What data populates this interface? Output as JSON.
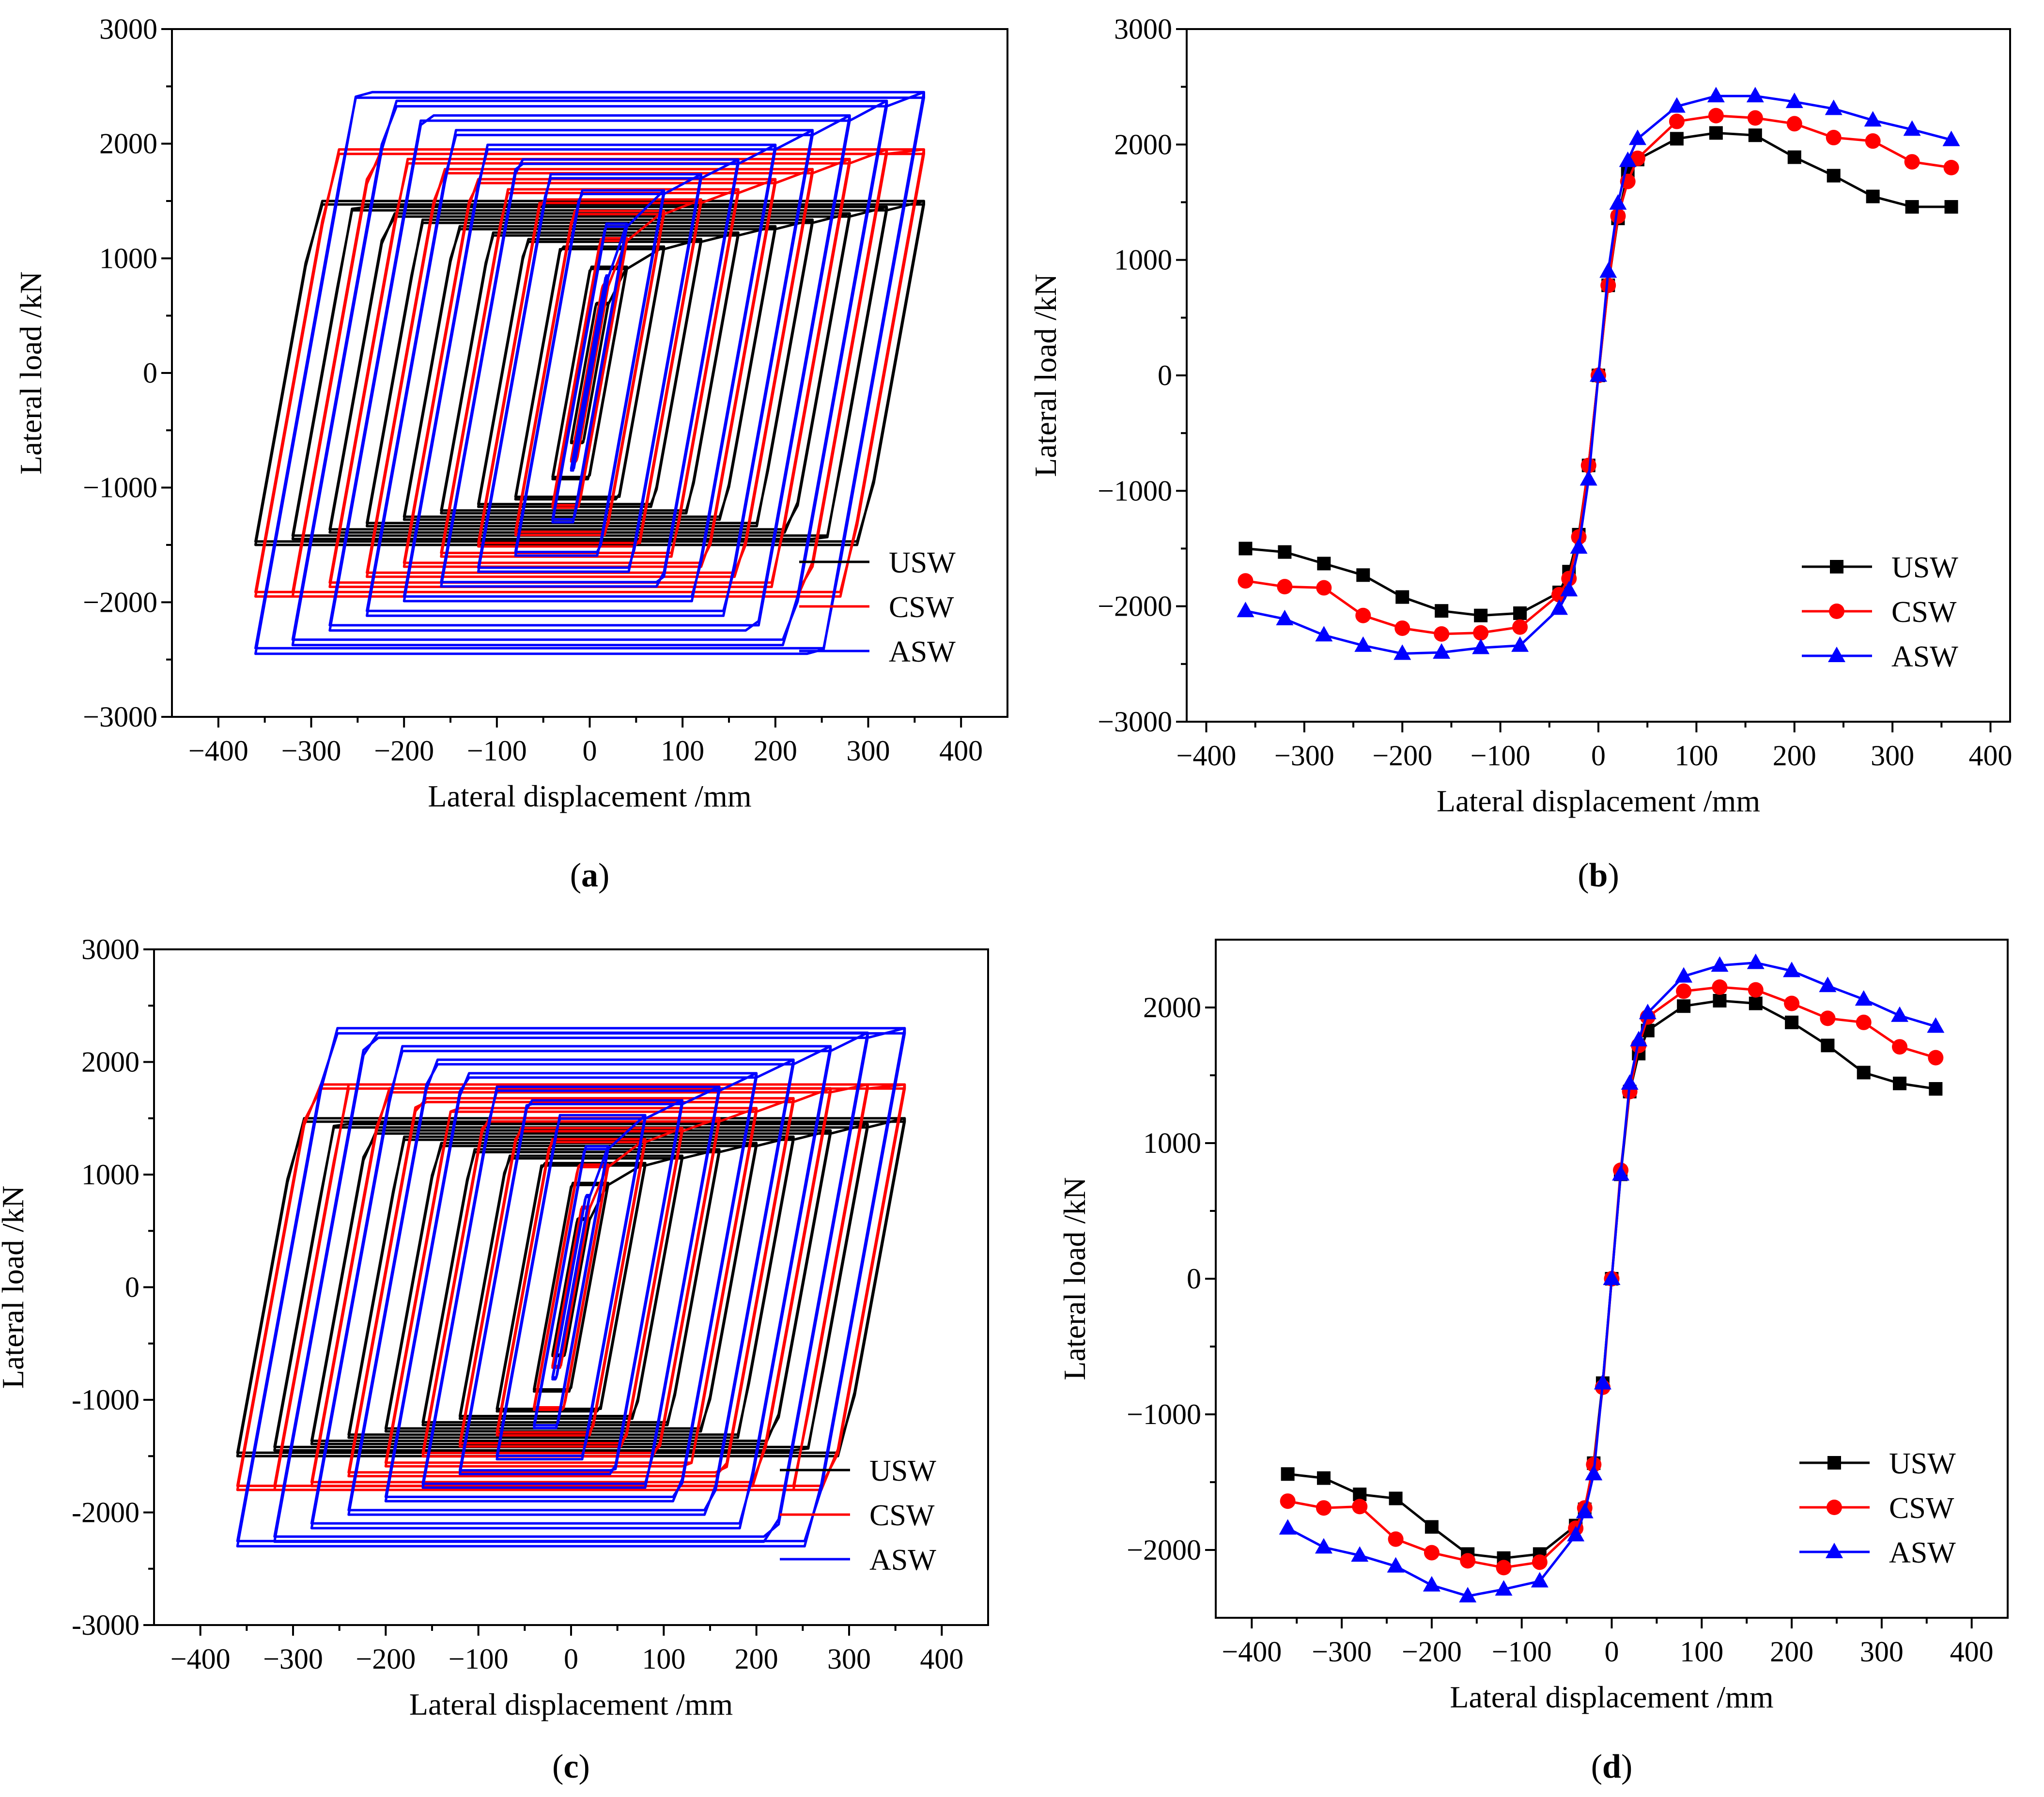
{
  "figure": {
    "colors": {
      "USW": "#000000",
      "CSW": "#ff0000",
      "ASW": "#0000ff"
    }
  },
  "chart_data": [
    {
      "id": "a",
      "type": "line",
      "subtype": "hysteresis",
      "caption": {
        "open": "(",
        "letter": "a",
        "close": ")"
      },
      "xlabel": "Lateral displacement /mm",
      "ylabel": "Lateral load /kN",
      "xlim": [
        -450,
        450
      ],
      "ylim": [
        -3000,
        3000
      ],
      "xticks": [
        -400,
        -300,
        -200,
        -100,
        0,
        100,
        200,
        300,
        400
      ],
      "yticks": [
        -3000,
        -2000,
        -1000,
        0,
        1000,
        2000,
        3000
      ],
      "xtick_labels": [
        "−400",
        "−300",
        "−200",
        "−100",
        "0",
        "100",
        "200",
        "300",
        "400"
      ],
      "ytick_labels": [
        "−3000",
        "−2000",
        "−1000",
        "0",
        "1000",
        "2000",
        "3000"
      ],
      "legend_position": "bottom-right",
      "legend": [
        "USW",
        "CSW",
        "ASW"
      ],
      "amplitudes": [
        20,
        40,
        80,
        120,
        160,
        200,
        240,
        280,
        320,
        360
      ],
      "series": [
        {
          "name": "USW",
          "color": "#000000",
          "yield": 1000,
          "slope": 1.4,
          "cap": 1500
        },
        {
          "name": "CSW",
          "color": "#ff0000",
          "yield": 1250,
          "slope": 2.2,
          "cap": 1950
        },
        {
          "name": "ASW",
          "color": "#0000ff",
          "yield": 1350,
          "slope": 3.2,
          "cap": 2450
        }
      ]
    },
    {
      "id": "b",
      "type": "line",
      "subtype": "skeleton",
      "caption": {
        "open": "(",
        "letter": "b",
        "close": ")"
      },
      "xlabel": "Lateral displacement /mm",
      "ylabel": "Lateral load /kN",
      "xlim": [
        -420,
        420
      ],
      "ylim": [
        -3000,
        3000
      ],
      "xticks": [
        -400,
        -300,
        -200,
        -100,
        0,
        100,
        200,
        300,
        400
      ],
      "yticks": [
        -3000,
        -2000,
        -1000,
        0,
        1000,
        2000,
        3000
      ],
      "xtick_labels": [
        "−400",
        "−300",
        "−200",
        "−100",
        "0",
        "100",
        "200",
        "300",
        "400"
      ],
      "ytick_labels": [
        "−3000",
        "−2000",
        "−1000",
        "0",
        "1000",
        "2000",
        "3000"
      ],
      "legend_position": "bottom-right",
      "legend": [
        "USW",
        "CSW",
        "ASW"
      ],
      "x": [
        -360,
        -320,
        -280,
        -240,
        -200,
        -160,
        -120,
        -80,
        -40,
        -30,
        -20,
        -10,
        0,
        10,
        20,
        30,
        40,
        80,
        120,
        160,
        200,
        240,
        280,
        320,
        360
      ],
      "series": [
        {
          "name": "USW",
          "color": "#000000",
          "marker": "square",
          "values": [
            -1500,
            -1530,
            -1630,
            -1730,
            -1920,
            -2040,
            -2080,
            -2060,
            -1880,
            -1700,
            -1380,
            -780,
            0,
            780,
            1360,
            1760,
            1870,
            2050,
            2100,
            2080,
            1890,
            1730,
            1550,
            1460,
            1460
          ]
        },
        {
          "name": "CSW",
          "color": "#ff0000",
          "marker": "circle",
          "values": [
            -1780,
            -1830,
            -1840,
            -2080,
            -2190,
            -2240,
            -2230,
            -2180,
            -1900,
            -1760,
            -1400,
            -780,
            0,
            780,
            1380,
            1680,
            1880,
            2200,
            2250,
            2230,
            2180,
            2060,
            2030,
            1850,
            1800
          ]
        },
        {
          "name": "ASW",
          "color": "#0000ff",
          "marker": "triangle",
          "values": [
            -2040,
            -2110,
            -2250,
            -2340,
            -2410,
            -2400,
            -2360,
            -2340,
            -2020,
            -1860,
            -1490,
            -900,
            0,
            900,
            1490,
            1860,
            2050,
            2330,
            2420,
            2420,
            2370,
            2310,
            2210,
            2130,
            2040
          ]
        }
      ]
    },
    {
      "id": "c",
      "type": "line",
      "subtype": "hysteresis",
      "caption": {
        "open": "(",
        "letter": "c",
        "close": ")"
      },
      "xlabel": "Lateral displacement /mm",
      "ylabel": "Lateral load /kN",
      "xlim": [
        -450,
        450
      ],
      "ylim": [
        -3000,
        3000
      ],
      "xticks": [
        -400,
        -300,
        -200,
        -100,
        0,
        100,
        200,
        300,
        400
      ],
      "yticks": [
        -3000,
        -2000,
        -1000,
        0,
        1000,
        2000,
        3000
      ],
      "xtick_labels": [
        "−400",
        "−300",
        "−200",
        "−100",
        "0",
        "100",
        "200",
        "300",
        "400"
      ],
      "ytick_labels": [
        "-3000",
        "-2000",
        "-1000",
        "0",
        "1000",
        "2000",
        "3000"
      ],
      "legend_position": "bottom-right",
      "legend": [
        "USW",
        "CSW",
        "ASW"
      ],
      "amplitudes": [
        20,
        40,
        80,
        120,
        160,
        200,
        240,
        280,
        320,
        360
      ],
      "series": [
        {
          "name": "USW",
          "color": "#000000",
          "yield": 1000,
          "slope": 1.4,
          "cap": 1500
        },
        {
          "name": "CSW",
          "color": "#ff0000",
          "yield": 1150,
          "slope": 2.2,
          "cap": 1800
        },
        {
          "name": "ASW",
          "color": "#0000ff",
          "yield": 1300,
          "slope": 3.0,
          "cap": 2300
        }
      ]
    },
    {
      "id": "d",
      "type": "line",
      "subtype": "skeleton",
      "caption": {
        "open": "(",
        "letter": "d",
        "close": ")"
      },
      "xlabel": "Lateral displacement /mm",
      "ylabel": "Lateral load /kN",
      "xlim": [
        -440,
        440
      ],
      "ylim": [
        -2500,
        2500
      ],
      "xticks": [
        -400,
        -300,
        -200,
        -100,
        0,
        100,
        200,
        300,
        400
      ],
      "yticks": [
        -2000,
        -1000,
        0,
        1000,
        2000
      ],
      "xtick_labels": [
        "−400",
        "−300",
        "−200",
        "−100",
        "0",
        "100",
        "200",
        "300",
        "400"
      ],
      "ytick_labels": [
        "−2000",
        "−1000",
        "0",
        "1000",
        "2000"
      ],
      "legend_position": "bottom-right",
      "legend": [
        "USW",
        "CSW",
        "ASW"
      ],
      "x": [
        -360,
        -320,
        -280,
        -240,
        -200,
        -160,
        -120,
        -80,
        -40,
        -30,
        -20,
        -10,
        0,
        10,
        20,
        30,
        40,
        80,
        120,
        160,
        200,
        240,
        280,
        320,
        360
      ],
      "series": [
        {
          "name": "USW",
          "color": "#000000",
          "marker": "square",
          "values": [
            -1440,
            -1470,
            -1590,
            -1620,
            -1830,
            -2030,
            -2060,
            -2030,
            -1820,
            -1700,
            -1360,
            -770,
            0,
            770,
            1380,
            1660,
            1830,
            2010,
            2050,
            2030,
            1890,
            1720,
            1520,
            1440,
            1400
          ]
        },
        {
          "name": "CSW",
          "color": "#ff0000",
          "marker": "circle",
          "values": [
            -1640,
            -1690,
            -1680,
            -1920,
            -2020,
            -2080,
            -2130,
            -2090,
            -1840,
            -1690,
            -1370,
            -800,
            0,
            800,
            1380,
            1720,
            1930,
            2120,
            2150,
            2130,
            2030,
            1920,
            1890,
            1710,
            1630
          ]
        },
        {
          "name": "ASW",
          "color": "#0000ff",
          "marker": "triangle",
          "values": [
            -1840,
            -1980,
            -2040,
            -2120,
            -2260,
            -2340,
            -2290,
            -2230,
            -1890,
            -1720,
            -1440,
            -770,
            0,
            770,
            1440,
            1760,
            1960,
            2230,
            2310,
            2330,
            2270,
            2160,
            2060,
            1940,
            1860
          ]
        }
      ]
    }
  ]
}
